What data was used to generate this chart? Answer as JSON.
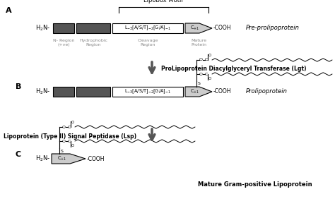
{
  "bg_color": "#ffffff",
  "dark_gray": "#555555",
  "mid_gray": "#888888",
  "light_gray": "#cccccc",
  "text_color": "#000000",
  "label_A": "A",
  "label_B": "B",
  "label_C": "C",
  "lipobox_label": "Lipobox Motif",
  "preprolipoprotein": "Pre-prolipoprotein",
  "prolipoprotein": "Prolipoprotein",
  "mature_label": "Mature Gram-positive Lipoprotein",
  "enzyme1": "ProLipoprotein Diacylglyceryl Transferase (Lgt)",
  "enzyme2": "Lipoprotein (Type II) Signal Peptidase (Lsp)",
  "n_region": "N- Region\n(+ve)",
  "hydrophobic": "Hydrophobic\nRegion",
  "cleavage_region": "Cleavage\nRegion",
  "mature_protein": "Mature\nProtein",
  "figw": 4.74,
  "figh": 3.09,
  "dpi": 100
}
